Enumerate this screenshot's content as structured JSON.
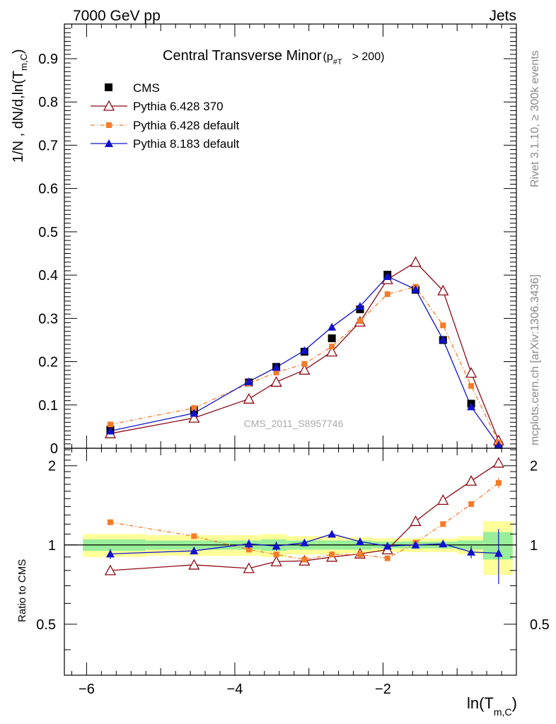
{
  "header": {
    "left": "7000 GeV pp",
    "right": "Jets"
  },
  "side_labels": {
    "rivet": "Rivet 3.1.10, ≥ 300k events",
    "mcplots": "mcplots.cern.ch [arXiv:1306.3436]"
  },
  "chart_data": [
    {
      "type": "scatter",
      "panel": "main",
      "title": "Central Transverse Minor",
      "title_cut": "(p",
      "title_cut_sub": "#T",
      "title_cut_tail": "> 200)",
      "ylabel": "1/N , dN/d,ln(T",
      "ylabel_sub": "m,C",
      "ylabel_tail": ")",
      "watermark": "CMS_2011_S8957746",
      "xlim": [
        -6.3,
        -0.2
      ],
      "ylim": [
        0,
        0.98
      ],
      "yticks": [
        0,
        0.1,
        0.2,
        0.3,
        0.4,
        0.5,
        0.6,
        0.7,
        0.8,
        0.9
      ],
      "ytick_labels": [
        "0",
        "0.1",
        "0.2",
        "0.3",
        "0.4",
        "0.5",
        "0.6",
        "0.7",
        "0.8",
        "0.9"
      ],
      "legend_position": "top-left",
      "x": [
        -5.68,
        -4.55,
        -3.81,
        -3.44,
        -3.06,
        -2.69,
        -2.31,
        -1.94,
        -1.56,
        -1.19,
        -0.81,
        -0.44
      ],
      "series": [
        {
          "name": "CMS",
          "color": "#000000",
          "marker": "square",
          "values": [
            0.043,
            0.087,
            0.152,
            0.188,
            0.223,
            0.254,
            0.321,
            0.401,
            0.366,
            0.25,
            0.103,
            0.008
          ]
        },
        {
          "name": "Pythia 6.428 370",
          "color": "#8b0a14",
          "marker": "open-triangle",
          "values": [
            0.034,
            0.07,
            0.114,
            0.153,
            0.181,
            0.223,
            0.292,
            0.39,
            0.43,
            0.364,
            0.174,
            0.018
          ]
        },
        {
          "name": "Pythia 6.428 default",
          "color": "#f47b2a",
          "marker": "square-small",
          "dashed": true,
          "values": [
            0.055,
            0.093,
            0.15,
            0.175,
            0.195,
            0.235,
            0.294,
            0.356,
            0.373,
            0.284,
            0.144,
            0.014
          ]
        },
        {
          "name": "Pythia 8.183 default",
          "color": "#1111cc",
          "marker": "filled-triangle",
          "values": [
            0.04,
            0.081,
            0.154,
            0.187,
            0.226,
            0.28,
            0.328,
            0.397,
            0.367,
            0.251,
            0.096,
            0.007
          ]
        }
      ]
    },
    {
      "type": "scatter",
      "panel": "ratio",
      "ylabel": "Ratio to CMS",
      "xlabel": "ln(T",
      "xlabel_sub": "m,C",
      "xlabel_tail": ")",
      "xlim": [
        -6.3,
        -0.2
      ],
      "ylim": [
        0.32,
        2.33
      ],
      "yticks": [
        0.5,
        1,
        2
      ],
      "ytick_labels": [
        "0.5",
        "1",
        "2"
      ],
      "xticks": [
        -6,
        -4,
        -2
      ],
      "xtick_labels": [
        "−6",
        "−4",
        "−2"
      ],
      "bins": [
        -6.05,
        -5.2,
        -4.05,
        -3.65,
        -3.3,
        -2.9,
        -2.55,
        -2.15,
        -1.75,
        -1.4,
        -1.0,
        -0.65,
        -0.25
      ],
      "band_inner": [
        0.05,
        0.04,
        0.04,
        0.05,
        0.04,
        0.04,
        0.04,
        0.03,
        0.03,
        0.03,
        0.04,
        0.12
      ],
      "band_outer": [
        0.1,
        0.09,
        0.09,
        0.1,
        0.08,
        0.08,
        0.07,
        0.06,
        0.06,
        0.06,
        0.08,
        0.23
      ],
      "series": [
        {
          "name": "Pythia 6.428 370",
          "values": [
            0.8,
            0.84,
            0.815,
            0.865,
            0.87,
            0.9,
            0.925,
            0.96,
            1.23,
            1.48,
            1.75,
            2.05
          ],
          "errors": [
            0.01,
            0.01,
            0.01,
            0.01,
            0.01,
            0.01,
            0.01,
            0.01,
            0.015,
            0.02,
            0.03,
            0.06
          ]
        },
        {
          "name": "Pythia 6.428 default",
          "values": [
            1.22,
            1.08,
            0.96,
            0.92,
            0.88,
            0.92,
            0.92,
            0.89,
            1.02,
            1.2,
            1.43,
            1.72
          ],
          "errors": [
            0.02,
            0.01,
            0.01,
            0.01,
            0.01,
            0.01,
            0.01,
            0.01,
            0.015,
            0.02,
            0.03,
            0.08
          ]
        },
        {
          "name": "Pythia 8.183 default",
          "values": [
            0.925,
            0.95,
            1.01,
            0.99,
            1.02,
            1.1,
            1.03,
            0.99,
            1.0,
            1.01,
            0.94,
            0.93
          ],
          "errors": [
            0.04,
            0.03,
            0.04,
            0.04,
            0.03,
            0.03,
            0.03,
            0.02,
            0.03,
            0.03,
            0.05,
            0.22
          ]
        }
      ]
    }
  ]
}
